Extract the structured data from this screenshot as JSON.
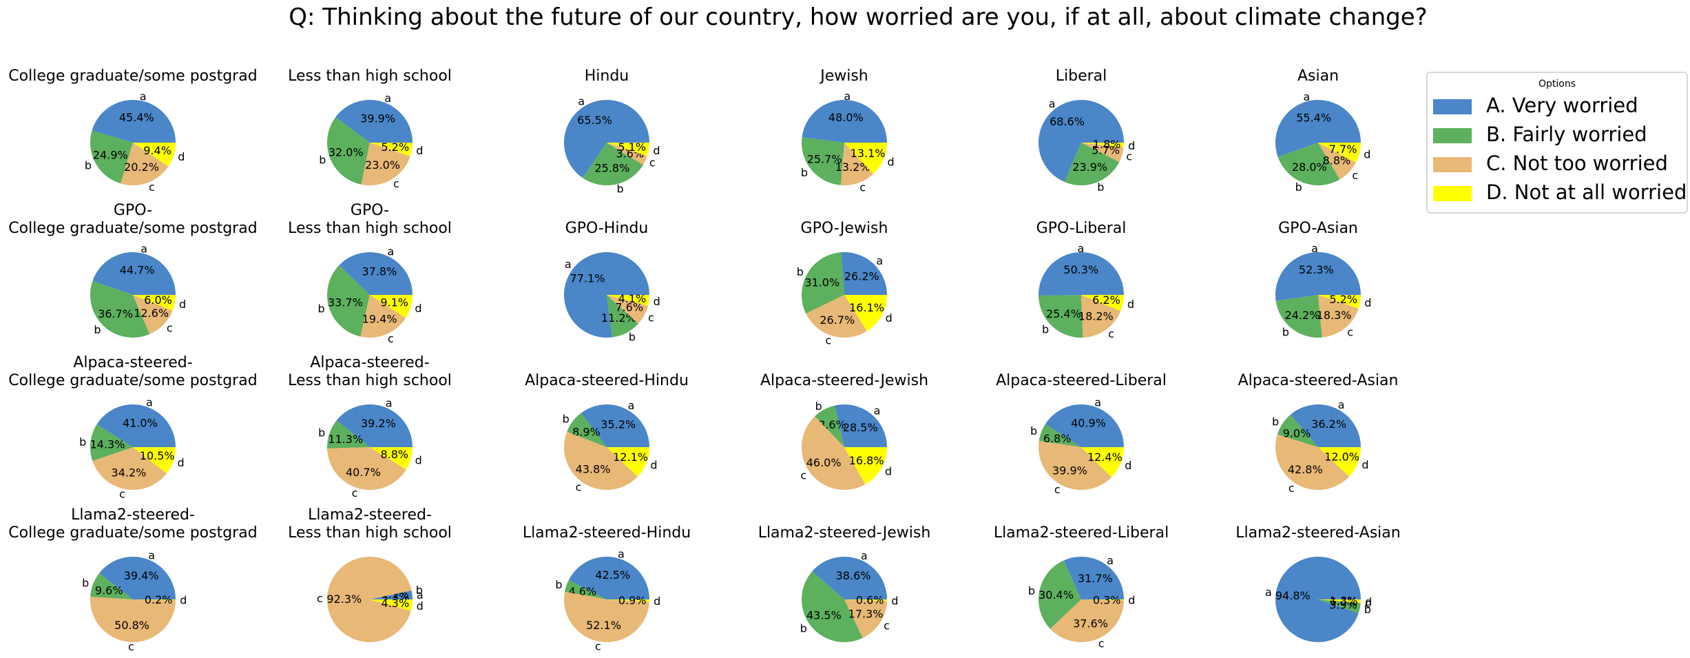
{
  "figure": {
    "title": "Q: Thinking about the future of our country, how worried are you, if at all, about climate change?"
  },
  "legend": {
    "title": "Options",
    "placement": "top-right",
    "entries": [
      {
        "key": "a",
        "label": "A. Very worried",
        "color": "#4a86c8"
      },
      {
        "key": "b",
        "label": "B. Fairly worried",
        "color": "#5db05e"
      },
      {
        "key": "c",
        "label": "C. Not too worried",
        "color": "#e8b877"
      },
      {
        "key": "d",
        "label": "D. Not at all worried",
        "color": "#ffff00"
      }
    ]
  },
  "chart_data": [
    {
      "type": "pie",
      "title": "College graduate/some postgrad",
      "labels": [
        "a",
        "b",
        "c",
        "d"
      ],
      "values": [
        45.4,
        24.9,
        20.2,
        9.4
      ],
      "value_labels": [
        "45.4%",
        "24.9%",
        "20.2%",
        "9.4%"
      ]
    },
    {
      "type": "pie",
      "title": "Less than high school",
      "labels": [
        "a",
        "b",
        "c",
        "d"
      ],
      "values": [
        39.9,
        32.0,
        23.0,
        5.2
      ],
      "value_labels": [
        "39.9%",
        "32.0%",
        "23.0%",
        "5.2%"
      ]
    },
    {
      "type": "pie",
      "title": "Hindu",
      "labels": [
        "a",
        "b",
        "c",
        "d"
      ],
      "values": [
        65.5,
        25.8,
        3.6,
        5.1
      ],
      "value_labels": [
        "65.5%",
        "25.8%",
        "3.6%",
        "5.1%"
      ]
    },
    {
      "type": "pie",
      "title": "Jewish",
      "labels": [
        "a",
        "b",
        "c",
        "d"
      ],
      "values": [
        48.0,
        25.7,
        13.2,
        13.1
      ],
      "value_labels": [
        "48.0%",
        "25.7%",
        "13.2%",
        "13.1%"
      ]
    },
    {
      "type": "pie",
      "title": "Liberal",
      "labels": [
        "a",
        "b",
        "c",
        "d"
      ],
      "values": [
        68.6,
        23.9,
        5.7,
        1.8
      ],
      "value_labels": [
        "68.6%",
        "23.9%",
        "5.7%",
        "1.8%"
      ]
    },
    {
      "type": "pie",
      "title": "Asian",
      "labels": [
        "a",
        "b",
        "c",
        "d"
      ],
      "values": [
        55.4,
        28.0,
        8.8,
        7.7
      ],
      "value_labels": [
        "55.4%",
        "28.0%",
        "8.8%",
        "7.7%"
      ]
    },
    {
      "type": "pie",
      "title": "GPO-\nCollege graduate/some postgrad",
      "labels": [
        "a",
        "b",
        "c",
        "d"
      ],
      "values": [
        44.7,
        36.7,
        12.6,
        6.0
      ],
      "value_labels": [
        "44.7%",
        "36.7%",
        "12.6%",
        "6.0%"
      ]
    },
    {
      "type": "pie",
      "title": "GPO-\nLess than high school",
      "labels": [
        "a",
        "b",
        "c",
        "d"
      ],
      "values": [
        37.8,
        33.7,
        19.4,
        9.1
      ],
      "value_labels": [
        "37.8%",
        "33.7%",
        "19.4%",
        "9.1%"
      ]
    },
    {
      "type": "pie",
      "title": "GPO-Hindu",
      "labels": [
        "a",
        "b",
        "c",
        "d"
      ],
      "values": [
        77.1,
        11.2,
        7.6,
        4.1
      ],
      "value_labels": [
        "77.1%",
        "11.2%",
        "7.6%",
        "4.1%"
      ]
    },
    {
      "type": "pie",
      "title": "GPO-Jewish",
      "labels": [
        "a",
        "b",
        "c",
        "d"
      ],
      "values": [
        26.2,
        31.0,
        26.7,
        16.1
      ],
      "value_labels": [
        "26.2%",
        "31.0%",
        "26.7%",
        "16.1%"
      ]
    },
    {
      "type": "pie",
      "title": "GPO-Liberal",
      "labels": [
        "a",
        "b",
        "c",
        "d"
      ],
      "values": [
        50.3,
        25.4,
        18.2,
        6.2
      ],
      "value_labels": [
        "50.3%",
        "25.4%",
        "18.2%",
        "6.2%"
      ]
    },
    {
      "type": "pie",
      "title": "GPO-Asian",
      "labels": [
        "a",
        "b",
        "c",
        "d"
      ],
      "values": [
        52.3,
        24.2,
        18.3,
        5.2
      ],
      "value_labels": [
        "52.3%",
        "24.2%",
        "18.3%",
        "5.2%"
      ]
    },
    {
      "type": "pie",
      "title": "Alpaca-steered-\nCollege graduate/some postgrad",
      "labels": [
        "a",
        "b",
        "c",
        "d"
      ],
      "values": [
        41.0,
        14.3,
        34.2,
        10.5
      ],
      "value_labels": [
        "41.0%",
        "14.3%",
        "34.2%",
        "10.5%"
      ]
    },
    {
      "type": "pie",
      "title": "Alpaca-steered-\nLess than high school",
      "labels": [
        "a",
        "b",
        "c",
        "d"
      ],
      "values": [
        39.2,
        11.3,
        40.7,
        8.8
      ],
      "value_labels": [
        "39.2%",
        "11.3%",
        "40.7%",
        "8.8%"
      ]
    },
    {
      "type": "pie",
      "title": "Alpaca-steered-Hindu",
      "labels": [
        "a",
        "b",
        "c",
        "d"
      ],
      "values": [
        35.2,
        8.9,
        43.8,
        12.1
      ],
      "value_labels": [
        "35.2%",
        "8.9%",
        "43.8%",
        "12.1%"
      ]
    },
    {
      "type": "pie",
      "title": "Alpaca-steered-Jewish",
      "labels": [
        "a",
        "b",
        "c",
        "d"
      ],
      "values": [
        28.5,
        8.6,
        46.0,
        16.8
      ],
      "value_labels": [
        "28.5%",
        "8.6%",
        "46.0%",
        "16.8%"
      ]
    },
    {
      "type": "pie",
      "title": "Alpaca-steered-Liberal",
      "labels": [
        "a",
        "b",
        "c",
        "d"
      ],
      "values": [
        40.9,
        6.8,
        39.9,
        12.4
      ],
      "value_labels": [
        "40.9%",
        "6.8%",
        "39.9%",
        "12.4%"
      ]
    },
    {
      "type": "pie",
      "title": "Alpaca-steered-Asian",
      "labels": [
        "a",
        "b",
        "c",
        "d"
      ],
      "values": [
        36.2,
        9.0,
        42.8,
        12.0
      ],
      "value_labels": [
        "36.2%",
        "9.0%",
        "42.8%",
        "12.0%"
      ]
    },
    {
      "type": "pie",
      "title": "Llama2-steered-\nCollege graduate/some postgrad",
      "labels": [
        "a",
        "b",
        "c",
        "d"
      ],
      "values": [
        39.4,
        9.6,
        50.8,
        0.2
      ],
      "value_labels": [
        "39.4%",
        "9.6%",
        "50.8%",
        "0.2%"
      ]
    },
    {
      "type": "pie",
      "title": "Llama2-steered-\nLess than high school",
      "labels": [
        "a",
        "b",
        "c",
        "d"
      ],
      "values": [
        3.3,
        0.1,
        92.3,
        4.3
      ],
      "value_labels": [
        "3.3%",
        "0.1%",
        "92.3%",
        "4.3%"
      ]
    },
    {
      "type": "pie",
      "title": "Llama2-steered-Hindu",
      "labels": [
        "a",
        "b",
        "c",
        "d"
      ],
      "values": [
        42.5,
        4.6,
        52.1,
        0.9
      ],
      "value_labels": [
        "42.5%",
        "4.6%",
        "52.1%",
        "0.9%"
      ]
    },
    {
      "type": "pie",
      "title": "Llama2-steered-Jewish",
      "labels": [
        "a",
        "b",
        "c",
        "d"
      ],
      "values": [
        38.6,
        43.5,
        17.3,
        0.6
      ],
      "value_labels": [
        "38.6%",
        "43.5%",
        "17.3%",
        "0.6%"
      ]
    },
    {
      "type": "pie",
      "title": "Llama2-steered-Liberal",
      "labels": [
        "a",
        "b",
        "c",
        "d"
      ],
      "values": [
        31.7,
        30.4,
        37.6,
        0.3
      ],
      "value_labels": [
        "31.7%",
        "30.4%",
        "37.6%",
        "0.3%"
      ]
    },
    {
      "type": "pie",
      "title": "Llama2-steered-Asian",
      "labels": [
        "a",
        "b",
        "c",
        "d"
      ],
      "values": [
        94.8,
        3.9,
        0.0,
        1.3
      ],
      "value_labels": [
        "94.8%",
        "3.9%",
        "0.0%",
        "1.3%"
      ]
    }
  ]
}
